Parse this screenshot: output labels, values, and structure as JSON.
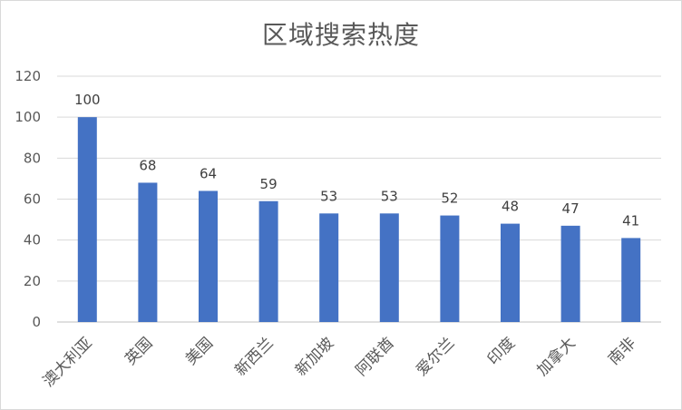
{
  "chart_data": {
    "type": "bar",
    "title": "区域搜索热度",
    "categories": [
      "澳大利亚",
      "英国",
      "美国",
      "新西兰",
      "新加坡",
      "阿联酋",
      "爱尔兰",
      "印度",
      "加拿大",
      "南非"
    ],
    "values": [
      100,
      68,
      64,
      59,
      53,
      53,
      52,
      48,
      47,
      41
    ],
    "ylim": [
      0,
      120
    ],
    "yticks": [
      0,
      20,
      40,
      60,
      80,
      100,
      120
    ],
    "grid": true,
    "legend": "none",
    "bar_color": "#4472C4",
    "data_labels": true
  }
}
